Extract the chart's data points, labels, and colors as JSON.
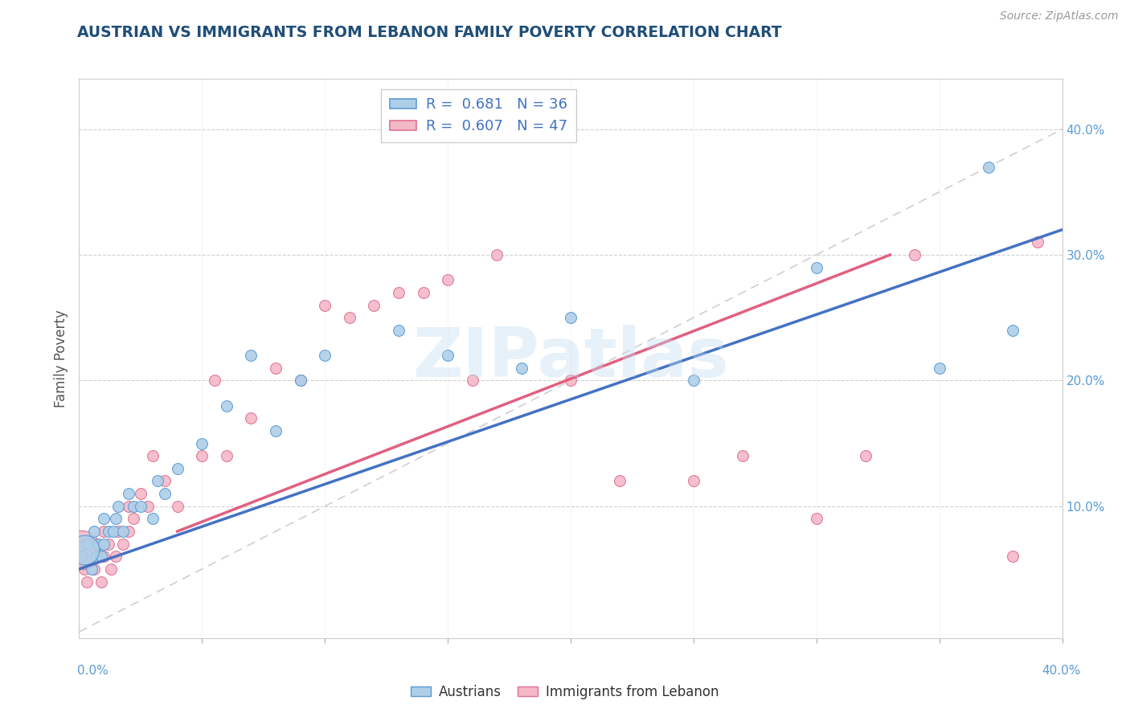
{
  "title": "AUSTRIAN VS IMMIGRANTS FROM LEBANON FAMILY POVERTY CORRELATION CHART",
  "source": "Source: ZipAtlas.com",
  "ylabel": "Family Poverty",
  "watermark": "ZIPatlas",
  "blue_fill": "#AECFE8",
  "blue_edge": "#5B9BD5",
  "blue_line": "#4472C4",
  "pink_fill": "#F4B8C8",
  "pink_edge": "#E07090",
  "pink_line": "#E06080",
  "ref_dash_color": "#BBBBBB",
  "legend_r1": "R =  0.681   N = 36",
  "legend_r2": "R =  0.607   N = 47",
  "xlim": [
    0.0,
    0.4
  ],
  "ylim": [
    -0.005,
    0.44
  ],
  "blue_line_x": [
    0.0,
    0.4
  ],
  "blue_line_y": [
    0.05,
    0.32
  ],
  "pink_line_x": [
    0.04,
    0.33
  ],
  "pink_line_y": [
    0.08,
    0.3
  ],
  "austrians_x": [
    0.001,
    0.003,
    0.005,
    0.006,
    0.007,
    0.008,
    0.009,
    0.01,
    0.01,
    0.012,
    0.014,
    0.015,
    0.016,
    0.018,
    0.02,
    0.022,
    0.025,
    0.03,
    0.032,
    0.035,
    0.04,
    0.05,
    0.06,
    0.07,
    0.08,
    0.09,
    0.1,
    0.13,
    0.15,
    0.18,
    0.2,
    0.25,
    0.3,
    0.35,
    0.37,
    0.38
  ],
  "austrians_y": [
    0.06,
    0.07,
    0.05,
    0.08,
    0.06,
    0.07,
    0.06,
    0.09,
    0.07,
    0.08,
    0.08,
    0.09,
    0.1,
    0.08,
    0.11,
    0.1,
    0.1,
    0.09,
    0.12,
    0.11,
    0.13,
    0.15,
    0.18,
    0.22,
    0.16,
    0.2,
    0.22,
    0.24,
    0.22,
    0.21,
    0.25,
    0.2,
    0.29,
    0.21,
    0.37,
    0.24
  ],
  "austrians_big_x": [
    0.002
  ],
  "austrians_big_y": [
    0.065
  ],
  "lebanon_x": [
    0.001,
    0.002,
    0.003,
    0.004,
    0.005,
    0.006,
    0.007,
    0.008,
    0.009,
    0.01,
    0.01,
    0.012,
    0.013,
    0.015,
    0.016,
    0.018,
    0.02,
    0.02,
    0.022,
    0.025,
    0.028,
    0.03,
    0.035,
    0.04,
    0.05,
    0.055,
    0.06,
    0.07,
    0.08,
    0.09,
    0.1,
    0.11,
    0.12,
    0.13,
    0.14,
    0.15,
    0.16,
    0.17,
    0.2,
    0.22,
    0.25,
    0.27,
    0.3,
    0.32,
    0.34,
    0.38,
    0.39
  ],
  "lebanon_y": [
    0.06,
    0.05,
    0.04,
    0.07,
    0.06,
    0.05,
    0.07,
    0.06,
    0.04,
    0.06,
    0.08,
    0.07,
    0.05,
    0.06,
    0.08,
    0.07,
    0.08,
    0.1,
    0.09,
    0.11,
    0.1,
    0.14,
    0.12,
    0.1,
    0.14,
    0.2,
    0.14,
    0.17,
    0.21,
    0.2,
    0.26,
    0.25,
    0.26,
    0.27,
    0.27,
    0.28,
    0.2,
    0.3,
    0.2,
    0.12,
    0.12,
    0.14,
    0.09,
    0.14,
    0.3,
    0.06,
    0.31
  ],
  "lebanon_big_x": [
    0.001
  ],
  "lebanon_big_y": [
    0.065
  ]
}
